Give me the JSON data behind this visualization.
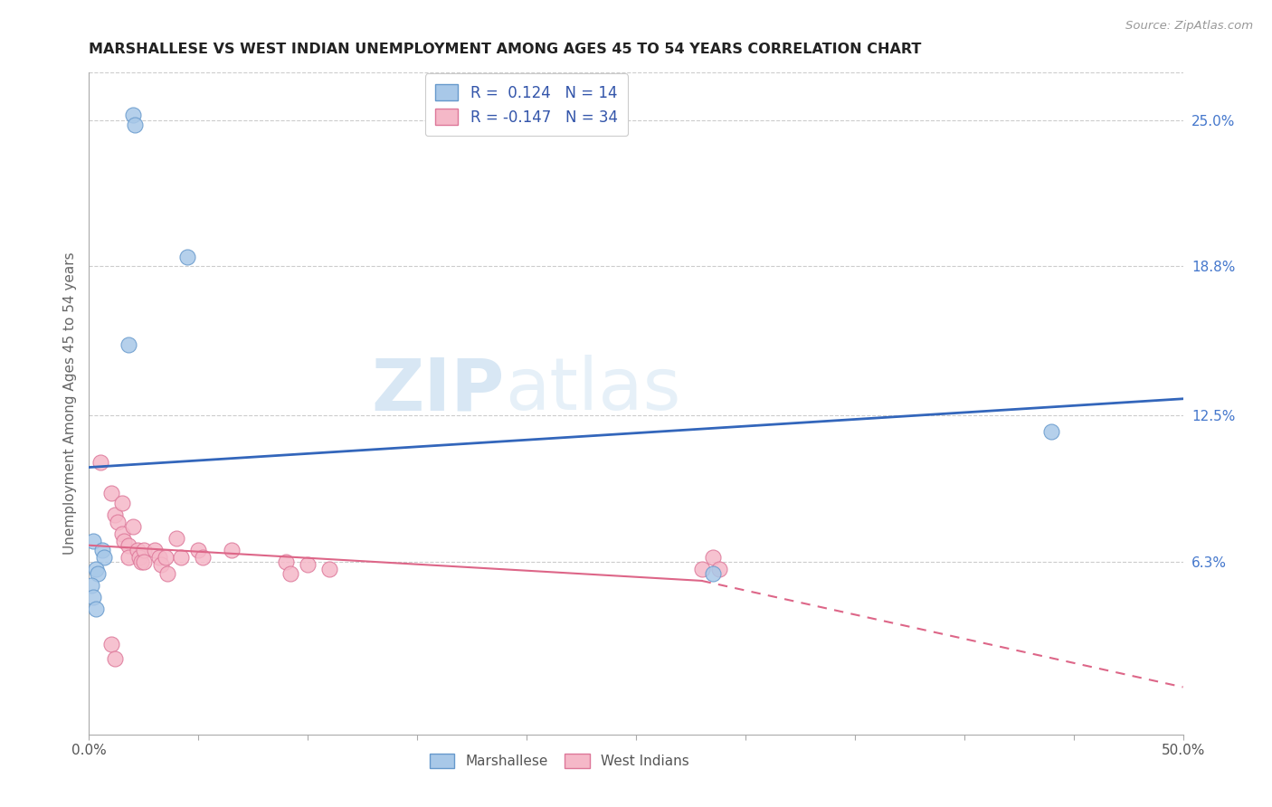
{
  "title": "MARSHALLESE VS WEST INDIAN UNEMPLOYMENT AMONG AGES 45 TO 54 YEARS CORRELATION CHART",
  "source": "Source: ZipAtlas.com",
  "ylabel": "Unemployment Among Ages 45 to 54 years",
  "xlim": [
    0.0,
    0.5
  ],
  "ylim": [
    -0.01,
    0.27
  ],
  "xticks": [
    0.0,
    0.05,
    0.1,
    0.15,
    0.2,
    0.25,
    0.3,
    0.35,
    0.4,
    0.45,
    0.5
  ],
  "ytick_labels_right": [
    "25.0%",
    "18.8%",
    "12.5%",
    "6.3%"
  ],
  "ytick_vals_right": [
    0.25,
    0.188,
    0.125,
    0.063
  ],
  "legend_labels": [
    "R =  0.124   N = 14",
    "R = -0.147   N = 34"
  ],
  "marshallese_scatter": [
    [
      0.02,
      0.252
    ],
    [
      0.021,
      0.248
    ],
    [
      0.045,
      0.192
    ],
    [
      0.018,
      0.155
    ],
    [
      0.002,
      0.072
    ],
    [
      0.006,
      0.068
    ],
    [
      0.007,
      0.065
    ],
    [
      0.003,
      0.06
    ],
    [
      0.004,
      0.058
    ],
    [
      0.001,
      0.053
    ],
    [
      0.002,
      0.048
    ],
    [
      0.003,
      0.043
    ],
    [
      0.44,
      0.118
    ],
    [
      0.285,
      0.058
    ]
  ],
  "west_indian_scatter": [
    [
      0.005,
      0.105
    ],
    [
      0.01,
      0.092
    ],
    [
      0.012,
      0.083
    ],
    [
      0.013,
      0.08
    ],
    [
      0.015,
      0.088
    ],
    [
      0.015,
      0.075
    ],
    [
      0.016,
      0.072
    ],
    [
      0.018,
      0.07
    ],
    [
      0.018,
      0.065
    ],
    [
      0.02,
      0.078
    ],
    [
      0.022,
      0.068
    ],
    [
      0.023,
      0.065
    ],
    [
      0.024,
      0.063
    ],
    [
      0.025,
      0.068
    ],
    [
      0.025,
      0.063
    ],
    [
      0.03,
      0.068
    ],
    [
      0.032,
      0.065
    ],
    [
      0.033,
      0.062
    ],
    [
      0.035,
      0.065
    ],
    [
      0.036,
      0.058
    ],
    [
      0.04,
      0.073
    ],
    [
      0.042,
      0.065
    ],
    [
      0.05,
      0.068
    ],
    [
      0.052,
      0.065
    ],
    [
      0.065,
      0.068
    ],
    [
      0.09,
      0.063
    ],
    [
      0.092,
      0.058
    ],
    [
      0.1,
      0.062
    ],
    [
      0.11,
      0.06
    ],
    [
      0.01,
      0.028
    ],
    [
      0.012,
      0.022
    ],
    [
      0.285,
      0.065
    ],
    [
      0.288,
      0.06
    ],
    [
      0.28,
      0.06
    ]
  ],
  "marshallese_color": "#a8c8e8",
  "marshallese_edge": "#6699cc",
  "west_indian_color": "#f5b8c8",
  "west_indian_edge": "#dd7799",
  "blue_line_color": "#3366bb",
  "pink_line_color": "#dd6688",
  "blue_line": [
    0.0,
    0.103,
    0.5,
    0.132
  ],
  "pink_line_solid": [
    0.0,
    0.07,
    0.28,
    0.055
  ],
  "pink_line_dashed": [
    0.28,
    0.055,
    0.5,
    0.01
  ],
  "watermark_text": "ZIPatlas",
  "watermark_color": "#c8dff0",
  "background_color": "#ffffff",
  "grid_color": "#cccccc"
}
